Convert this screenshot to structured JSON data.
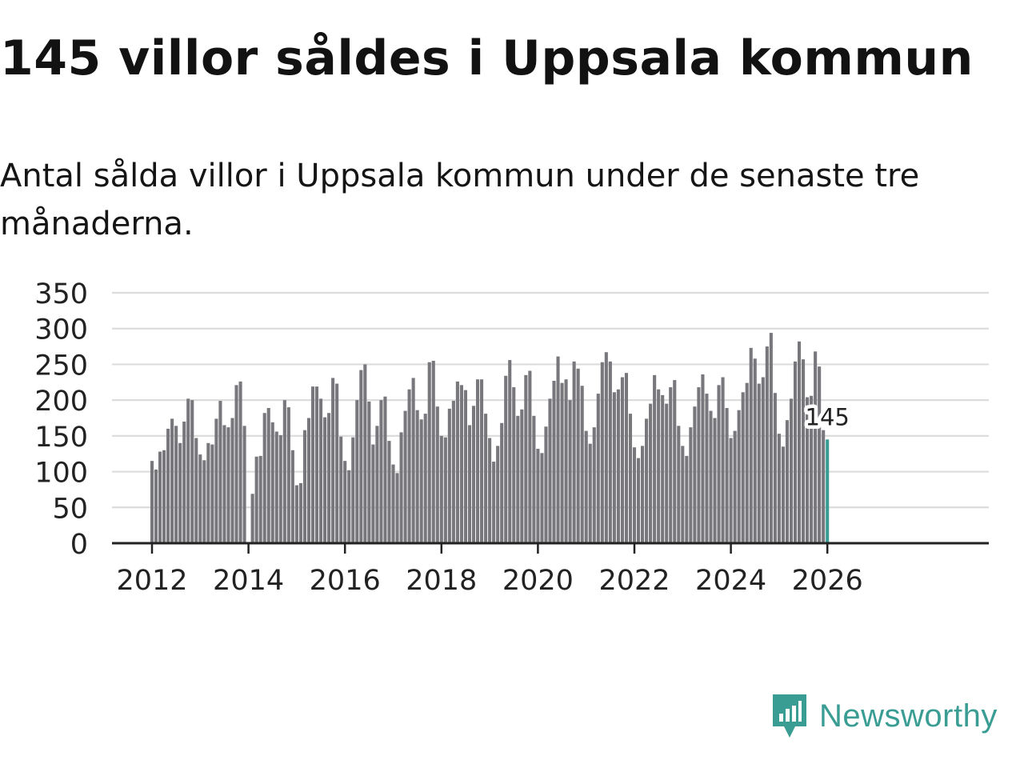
{
  "title": "145 villor såldes i Uppsala kommun",
  "subtitle": "Antal sålda villor i Uppsala kommun under de senaste tre månaderna.",
  "brand": {
    "name": "Newsworthy",
    "icon": "newsworthy-logo-icon"
  },
  "colors": {
    "bar": "#78777c",
    "highlight": "#3a9d94",
    "grid": "#dcdcdc",
    "axis": "#222222"
  },
  "chart_data": {
    "type": "bar",
    "title": "",
    "xlabel": "",
    "ylabel": "",
    "ylim": [
      0,
      350
    ],
    "yticks": [
      "0",
      "50",
      "100",
      "150",
      "200",
      "250",
      "300",
      "350"
    ],
    "xticks": [
      "2012",
      "2014",
      "2016",
      "2018",
      "2020",
      "2022",
      "2024",
      "2026"
    ],
    "start": "2012-01",
    "grid": true,
    "highlight_label": "145",
    "values": [
      115,
      103,
      128,
      130,
      160,
      174,
      164,
      140,
      170,
      202,
      200,
      147,
      124,
      116,
      140,
      138,
      174,
      199,
      165,
      162,
      175,
      221,
      226,
      164,
      null,
      69,
      121,
      122,
      182,
      189,
      169,
      156,
      151,
      200,
      190,
      130,
      81,
      84,
      158,
      175,
      219,
      219,
      202,
      176,
      182,
      231,
      223,
      149,
      115,
      102,
      148,
      200,
      242,
      250,
      198,
      138,
      164,
      200,
      205,
      143,
      110,
      98,
      155,
      185,
      215,
      231,
      186,
      173,
      181,
      253,
      255,
      191,
      150,
      148,
      188,
      199,
      226,
      221,
      214,
      165,
      192,
      229,
      229,
      181,
      147,
      114,
      136,
      168,
      234,
      256,
      218,
      178,
      187,
      235,
      241,
      178,
      132,
      126,
      163,
      202,
      227,
      261,
      224,
      229,
      200,
      254,
      244,
      220,
      157,
      139,
      162,
      209,
      253,
      267,
      254,
      211,
      215,
      232,
      238,
      181,
      134,
      119,
      136,
      174,
      195,
      235,
      215,
      207,
      195,
      218,
      228,
      164,
      136,
      122,
      162,
      191,
      218,
      236,
      209,
      185,
      175,
      221,
      232,
      189,
      147,
      157,
      186,
      211,
      224,
      273,
      258,
      223,
      232,
      275,
      294,
      210,
      153,
      135,
      172,
      202,
      254,
      282,
      257,
      204,
      206,
      268,
      247,
      158,
      145
    ]
  }
}
